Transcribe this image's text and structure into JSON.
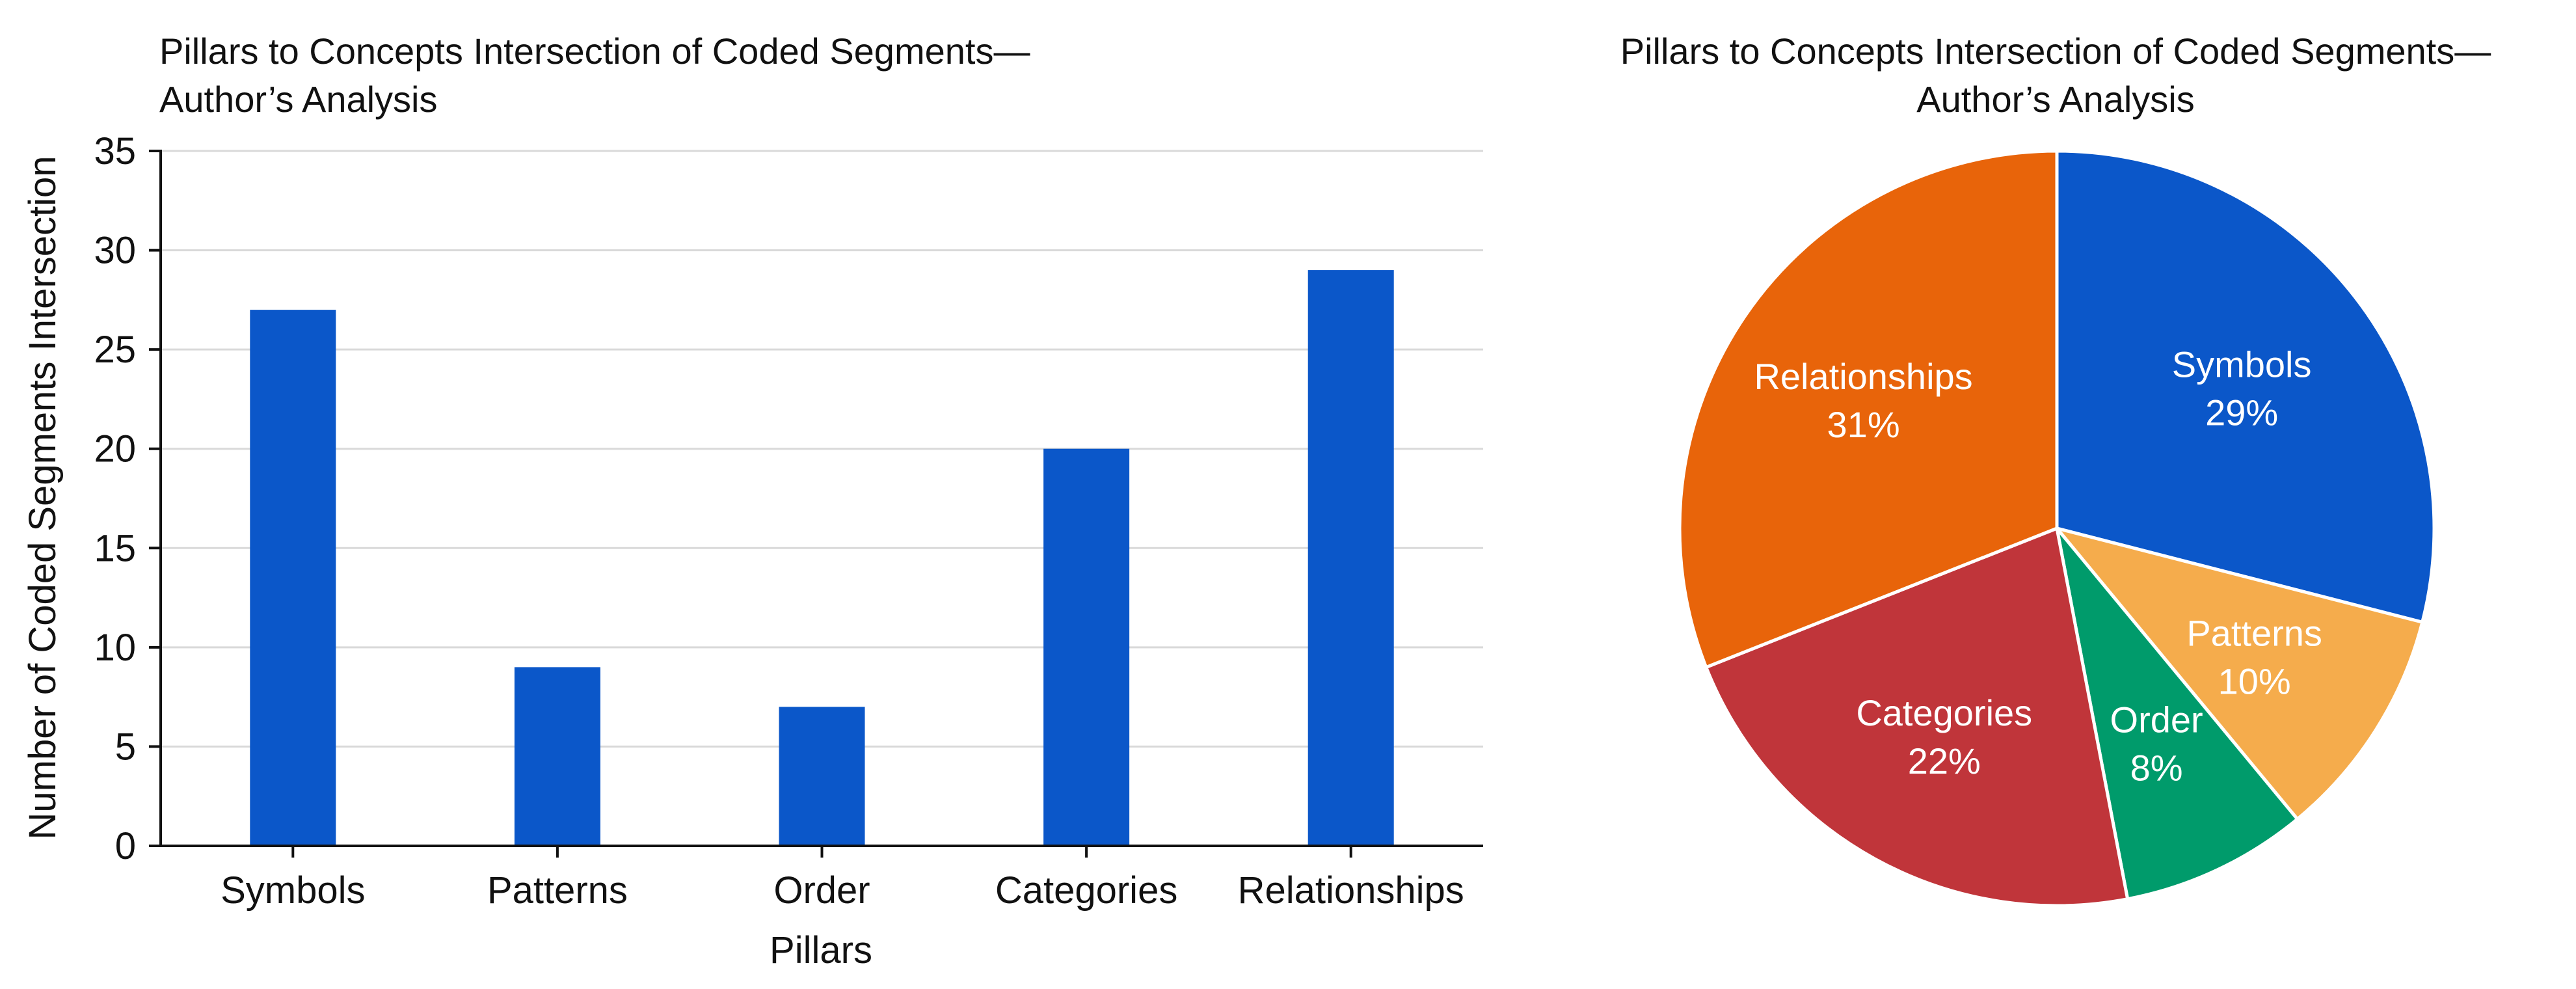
{
  "chart_data": [
    {
      "type": "bar",
      "title_lines": [
        "Pillars to Concepts Intersection of Coded Segments—",
        "Author’s Analysis"
      ],
      "xlabel": "Pillars",
      "ylabel": "Number of Coded Segments Intersection",
      "categories": [
        "Symbols",
        "Patterns",
        "Order",
        "Categories",
        "Relationships"
      ],
      "values": [
        27,
        9,
        7,
        20,
        29
      ],
      "ylim": [
        0,
        35
      ],
      "yticks": [
        0,
        5,
        10,
        15,
        20,
        25,
        30,
        35
      ],
      "ytick_labels": [
        "0",
        "5",
        "10",
        "15",
        "20",
        "25",
        "30",
        "35"
      ],
      "grid": true,
      "bar_color": "#0b57c9",
      "grid_color": "#d9d9d9"
    },
    {
      "type": "pie",
      "title_lines": [
        "Pillars to Concepts Intersection of Coded Segments—",
        "Author’s Analysis"
      ],
      "slices": [
        {
          "label": "Symbols",
          "value": 29,
          "pct_label": "29%",
          "color": "#0b57c9"
        },
        {
          "label": "Patterns",
          "value": 10,
          "pct_label": "10%",
          "color": "#f5ac4c"
        },
        {
          "label": "Order",
          "value": 8,
          "pct_label": "8%",
          "color": "#009b6b"
        },
        {
          "label": "Categories",
          "value": 22,
          "pct_label": "22%",
          "color": "#c0353a"
        },
        {
          "label": "Relationships",
          "value": 31,
          "pct_label": "31%",
          "color": "#e8640a"
        }
      ],
      "start": "12 o'clock",
      "direction": "clockwise"
    }
  ]
}
